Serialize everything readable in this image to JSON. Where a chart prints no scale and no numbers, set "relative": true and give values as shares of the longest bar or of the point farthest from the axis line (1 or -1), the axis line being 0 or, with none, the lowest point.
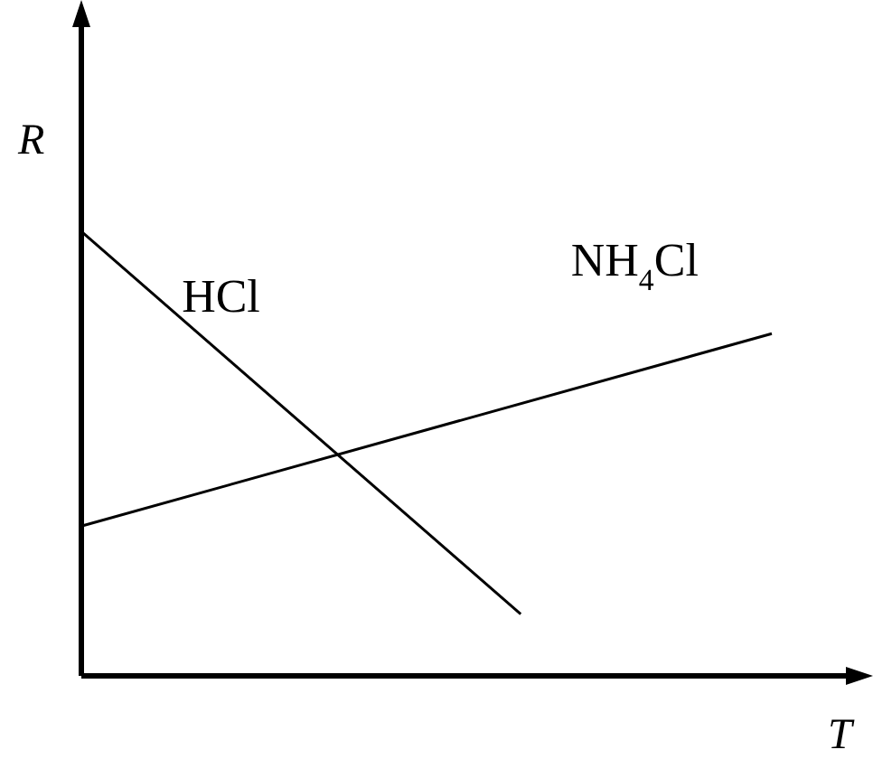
{
  "chart_data": {
    "type": "line",
    "relative": true,
    "xlabel": "T",
    "ylabel": "R",
    "legend": false,
    "grid": false,
    "tick_labels": false,
    "marker": "none",
    "line_style": "solid",
    "categories": [
      null,
      null,
      null,
      null,
      null,
      null,
      null,
      null,
      null,
      null,
      null,
      null
    ],
    "series": [
      {
        "name": "HCl",
        "color": "#000000",
        "values": [
          1,
          null,
          null,
          null,
          null,
          null,
          null,
          0.139,
          null,
          null,
          null,
          null
        ]
      },
      {
        "name": "NH$_{4}$Cl",
        "color": "#000000",
        "values": [
          0.337,
          null,
          null,
          null,
          null,
          null,
          null,
          null,
          null,
          null,
          null,
          0.77
        ]
      }
    ]
  }
}
